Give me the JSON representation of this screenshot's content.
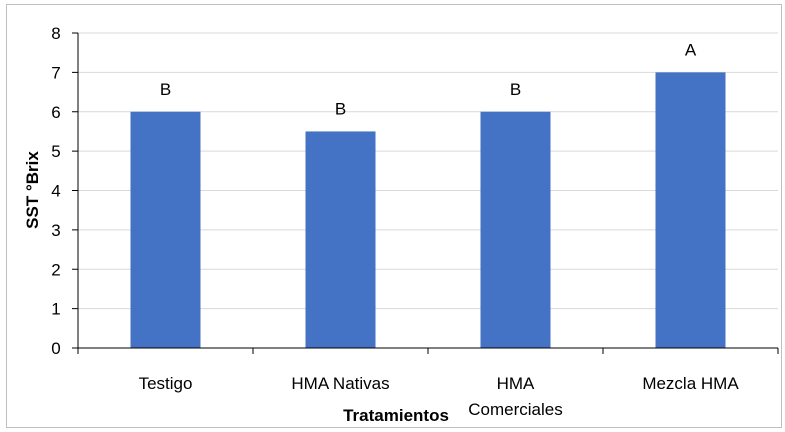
{
  "chart_data": {
    "type": "bar",
    "categories": [
      "Testigo",
      "HMA Nativas",
      "HMA Comerciales",
      "Mezcla HMA"
    ],
    "category_lines": [
      [
        "Testigo"
      ],
      [
        "HMA Nativas"
      ],
      [
        "HMA",
        "Comerciales"
      ],
      [
        "Mezcla HMA"
      ]
    ],
    "values": [
      6,
      5.5,
      6,
      7
    ],
    "data_labels": [
      "B",
      "B",
      "B",
      "A"
    ],
    "title": "",
    "xlabel": "Tratamientos",
    "ylabel": "SST °Brix",
    "ylim": [
      0,
      8
    ],
    "yticks": [
      0,
      1,
      2,
      3,
      4,
      5,
      6,
      7,
      8
    ],
    "grid": true,
    "bar_color": "#4472c4",
    "grid_color": "#d9d9d9"
  }
}
